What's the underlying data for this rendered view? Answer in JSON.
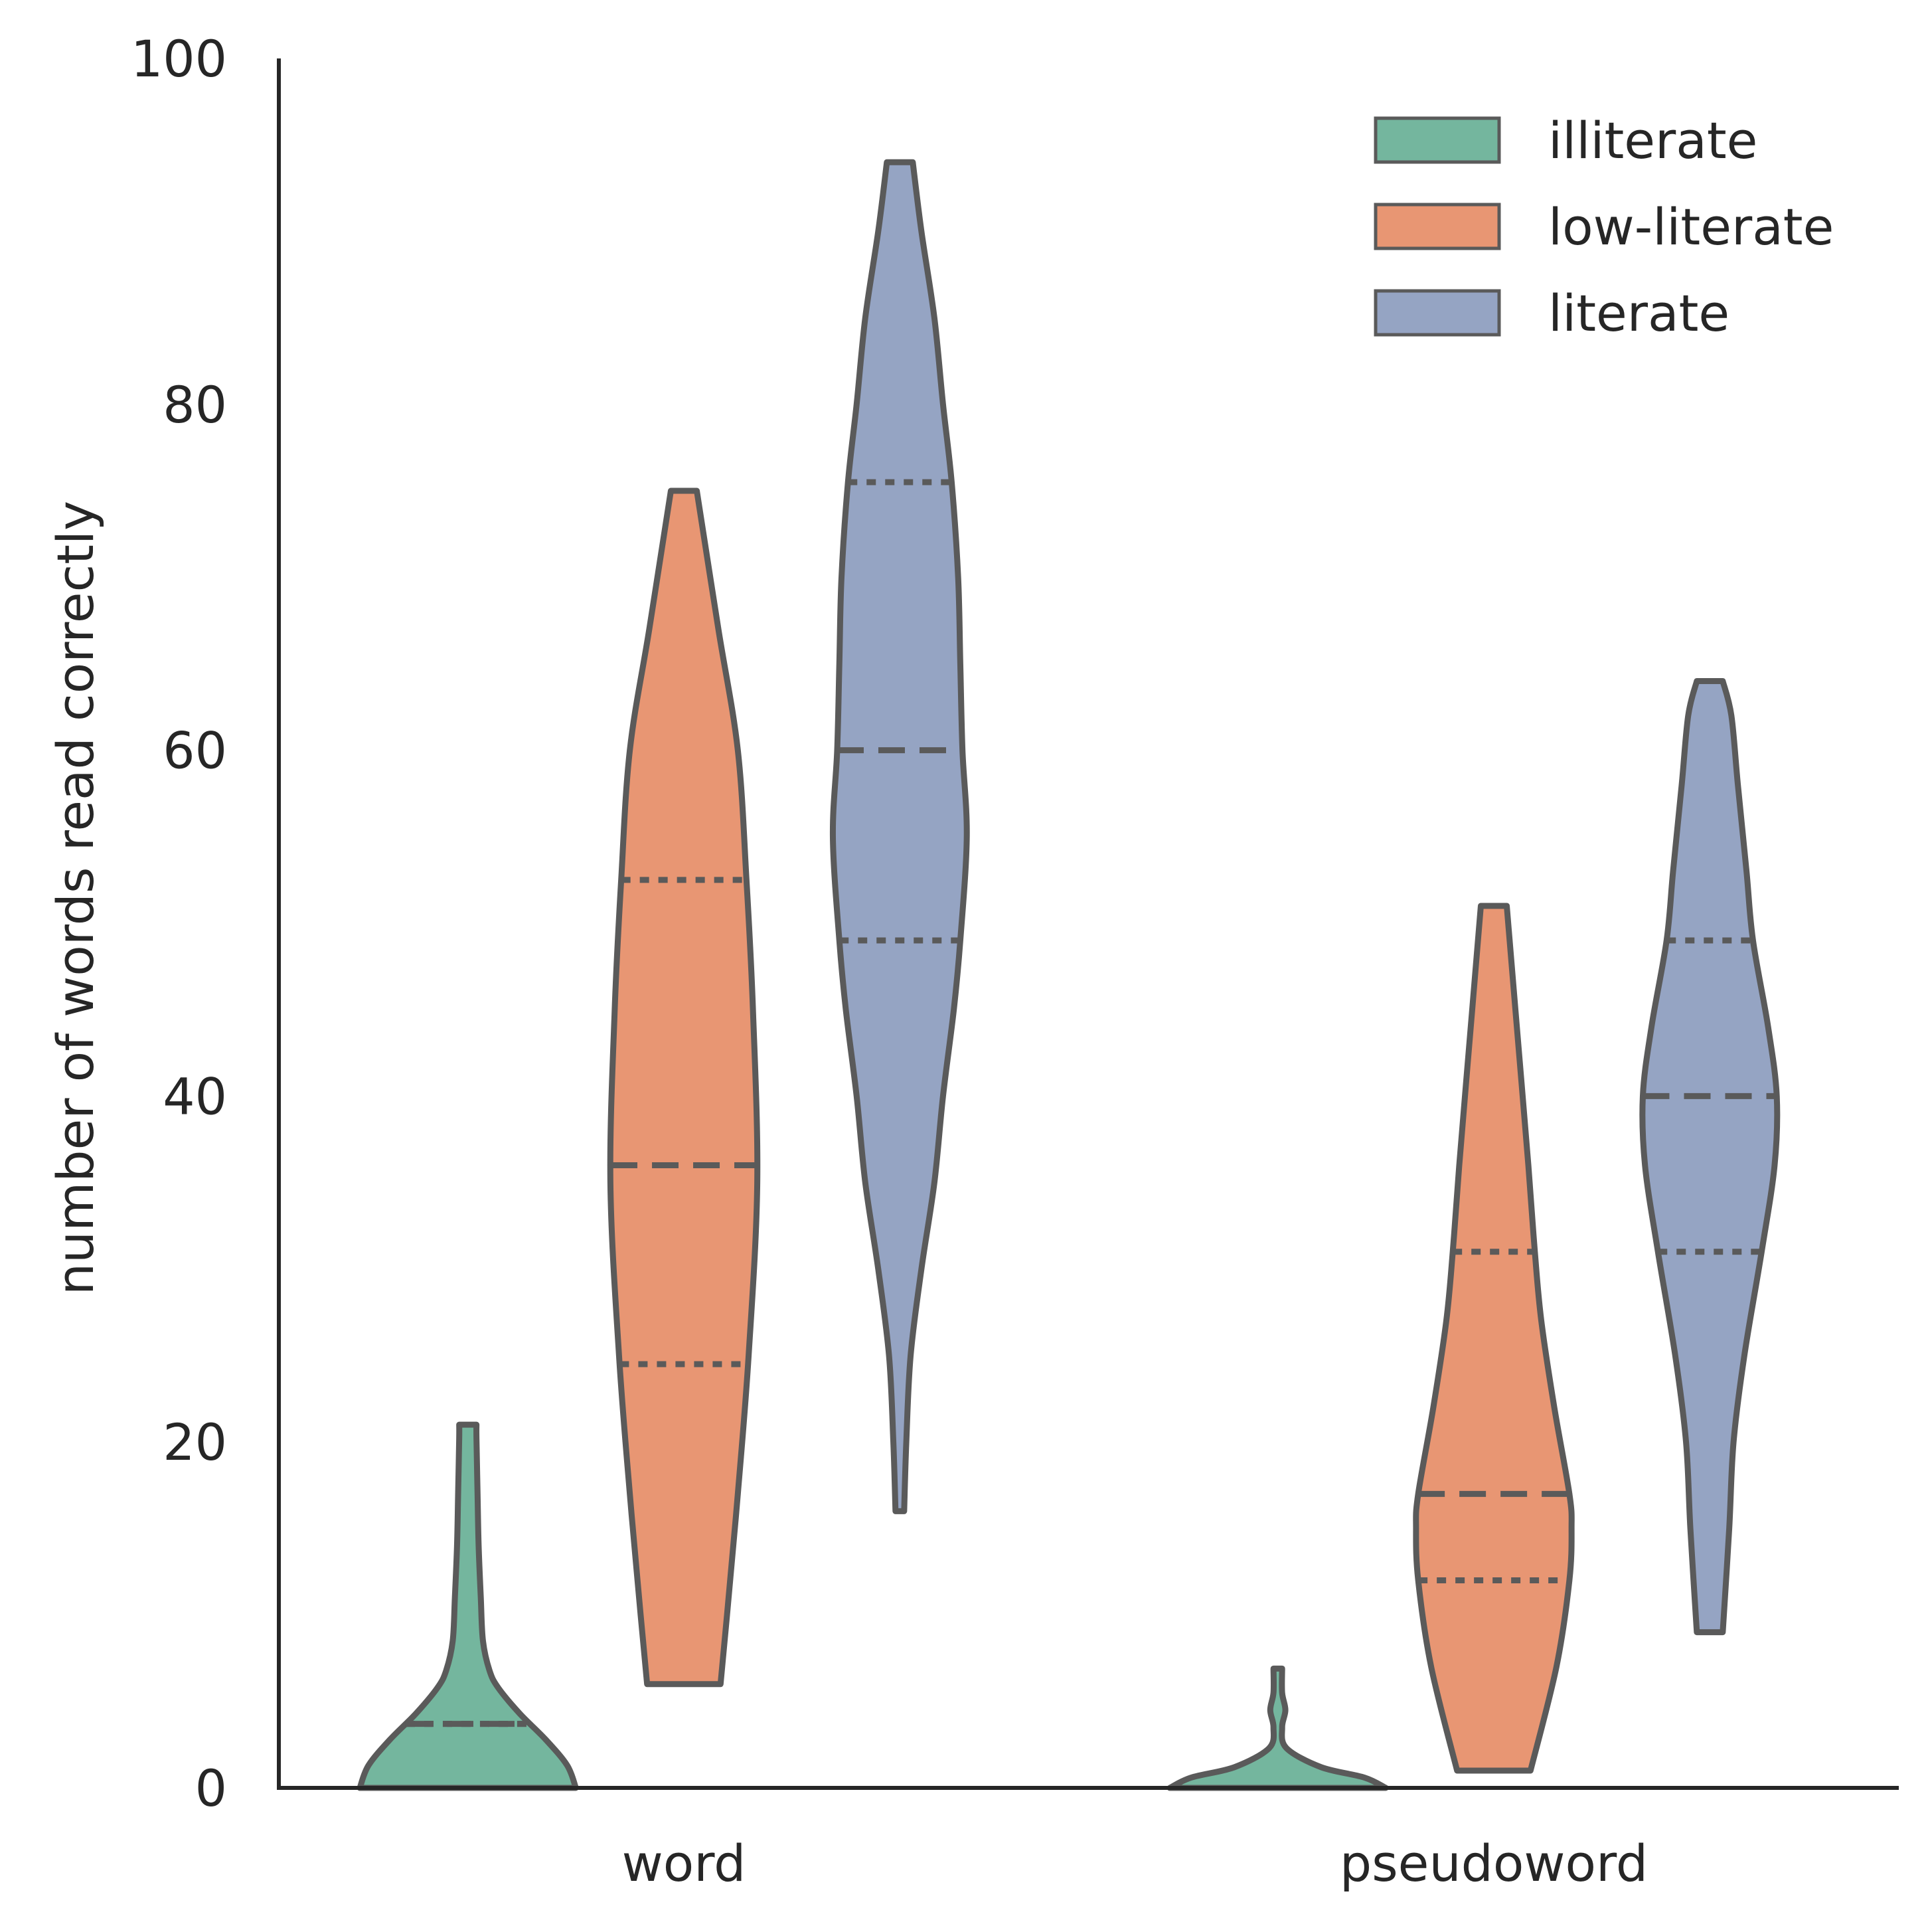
{
  "chart_data": {
    "type": "violin",
    "ylabel": "number of words read correctly",
    "xlabel": "",
    "ylim": [
      0,
      100
    ],
    "yticks": [
      "0",
      "20",
      "40",
      "60",
      "80",
      "100"
    ],
    "categories": [
      "word",
      "pseudoword"
    ],
    "legend_position": "top-right",
    "series": [
      {
        "name": "illiterate",
        "color": "#74b69e",
        "groups": [
          {
            "category": "word",
            "q1": 3.7,
            "median": 3.7,
            "q3": 3.7,
            "profile": [
              [
                0,
                0.5
              ],
              [
                1.3,
                0.46
              ],
              [
                2.8,
                0.36
              ],
              [
                4.3,
                0.24
              ],
              [
                5.8,
                0.14
              ],
              [
                6.8,
                0.1
              ],
              [
                8.5,
                0.07
              ],
              [
                11,
                0.06
              ],
              [
                14,
                0.05
              ],
              [
                17,
                0.045
              ],
              [
                20.2,
                0.04
              ],
              [
                21.0,
                0.04
              ]
            ]
          },
          {
            "category": "pseudoword",
            "profile": [
              [
                0,
                0.5
              ],
              [
                0.6,
                0.4
              ],
              [
                1.2,
                0.2
              ],
              [
                2.3,
                0.04
              ],
              [
                3.5,
                0.02
              ],
              [
                4.5,
                0.035
              ],
              [
                5.5,
                0.02
              ],
              [
                6.9,
                0.02
              ]
            ]
          }
        ]
      },
      {
        "name": "low-literate",
        "color": "#e89673",
        "groups": [
          {
            "category": "word",
            "q1": 24.5,
            "median": 36.0,
            "q3": 52.5,
            "profile": [
              [
                6.0,
                0.17
              ],
              [
                10,
                0.2
              ],
              [
                17,
                0.25
              ],
              [
                25,
                0.3
              ],
              [
                35,
                0.34
              ],
              [
                45,
                0.32
              ],
              [
                52.5,
                0.29
              ],
              [
                60,
                0.25
              ],
              [
                67,
                0.16
              ],
              [
                75,
                0.06
              ]
            ]
          },
          {
            "category": "pseudoword",
            "q1": 12.0,
            "median": 17.0,
            "q3": 31.0,
            "profile": [
              [
                1.0,
                0.17
              ],
              [
                7,
                0.29
              ],
              [
                12,
                0.35
              ],
              [
                15,
                0.36
              ],
              [
                17,
                0.35
              ],
              [
                22,
                0.28
              ],
              [
                27,
                0.22
              ],
              [
                31,
                0.19
              ],
              [
                36,
                0.16
              ],
              [
                45,
                0.1
              ],
              [
                51,
                0.06
              ]
            ]
          }
        ]
      },
      {
        "name": "literate",
        "color": "#95a4c3",
        "groups": [
          {
            "category": "word",
            "q1": 49.0,
            "median": 60.0,
            "q3": 75.5,
            "profile": [
              [
                16,
                0.02
              ],
              [
                20,
                0.03
              ],
              [
                25,
                0.05
              ],
              [
                30,
                0.1
              ],
              [
                35,
                0.16
              ],
              [
                40,
                0.2
              ],
              [
                45,
                0.25
              ],
              [
                49,
                0.28
              ],
              [
                55,
                0.31
              ],
              [
                60,
                0.29
              ],
              [
                65,
                0.28
              ],
              [
                70,
                0.27
              ],
              [
                75.5,
                0.24
              ],
              [
                80,
                0.2
              ],
              [
                85,
                0.16
              ],
              [
                90,
                0.1
              ],
              [
                94,
                0.06
              ]
            ]
          },
          {
            "category": "pseudoword",
            "q1": 31.0,
            "median": 40.0,
            "q3": 49.0,
            "profile": [
              [
                9,
                0.06
              ],
              [
                15,
                0.09
              ],
              [
                20,
                0.11
              ],
              [
                25,
                0.16
              ],
              [
                31,
                0.24
              ],
              [
                36,
                0.3
              ],
              [
                40,
                0.31
              ],
              [
                44,
                0.27
              ],
              [
                49,
                0.2
              ],
              [
                53,
                0.17
              ],
              [
                58,
                0.13
              ],
              [
                62,
                0.1
              ],
              [
                64,
                0.06
              ]
            ]
          }
        ]
      }
    ]
  }
}
